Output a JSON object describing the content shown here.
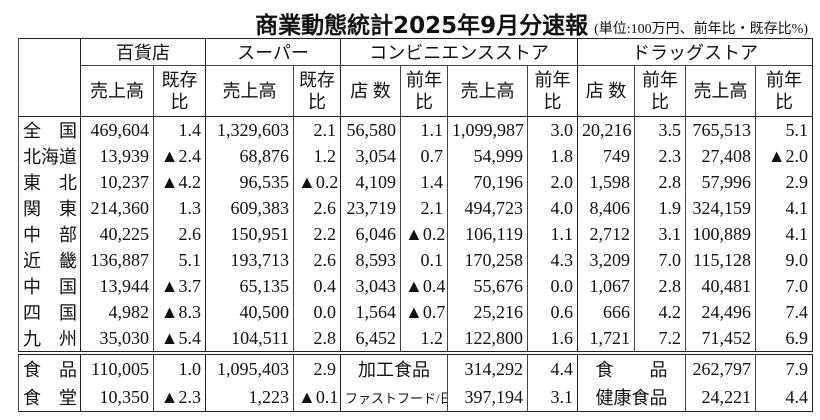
{
  "header": {
    "title": "商業動態統計2025年9月分速報",
    "unit": "(単位:100万円、前年比・既存比%)"
  },
  "table": {
    "groups": [
      "百貨店",
      "スーパー",
      "コンビニエンスストア",
      "ドラッグストア"
    ],
    "columns": [
      "売上高",
      "既存比",
      "売上高",
      "既存比",
      "店 数",
      "前年比",
      "売上高",
      "前年比",
      "店 数",
      "前年比",
      "売上高",
      "前年比"
    ],
    "rows": [
      [
        "全　国",
        "469,604",
        "1.4",
        "1,329,603",
        "2.1",
        "56,580",
        "1.1",
        "1,099,987",
        "3.0",
        "20,216",
        "3.5",
        "765,513",
        "5.1"
      ],
      [
        "北海道",
        "13,939",
        "▲2.4",
        "68,876",
        "1.2",
        "3,054",
        "0.7",
        "54,999",
        "1.8",
        "749",
        "2.3",
        "27,408",
        "▲2.0"
      ],
      [
        "東　北",
        "10,237",
        "▲4.2",
        "96,535",
        "▲0.2",
        "4,109",
        "1.4",
        "70,196",
        "2.0",
        "1,598",
        "2.8",
        "57,996",
        "2.9"
      ],
      [
        "関　東",
        "214,360",
        "1.3",
        "609,383",
        "2.6",
        "23,719",
        "2.1",
        "494,723",
        "4.0",
        "8,406",
        "1.9",
        "324,159",
        "4.1"
      ],
      [
        "中　部",
        "40,225",
        "2.6",
        "150,951",
        "2.2",
        "6,046",
        "▲0.2",
        "106,119",
        "1.1",
        "2,712",
        "3.1",
        "100,889",
        "4.1"
      ],
      [
        "近　畿",
        "136,887",
        "5.1",
        "193,713",
        "2.6",
        "8,593",
        "0.1",
        "170,258",
        "4.3",
        "3,209",
        "7.0",
        "115,128",
        "9.0"
      ],
      [
        "中　国",
        "13,944",
        "▲3.7",
        "65,135",
        "0.4",
        "3,043",
        "▲0.4",
        "55,676",
        "0.0",
        "1,067",
        "2.8",
        "40,481",
        "7.0"
      ],
      [
        "四　国",
        "4,982",
        "▲8.3",
        "40,500",
        "0.0",
        "1,564",
        "▲0.7",
        "25,216",
        "0.6",
        "666",
        "4.2",
        "24,496",
        "7.4"
      ],
      [
        "九　州",
        "35,030",
        "▲5.4",
        "104,511",
        "2.8",
        "6,452",
        "1.2",
        "122,800",
        "1.6",
        "1,721",
        "7.2",
        "71,452",
        "6.9"
      ]
    ],
    "category_rows": [
      [
        "食　品",
        "110,005",
        "1.0",
        "1,095,403",
        "2.9",
        "加工食品",
        "314,292",
        "4.4",
        "食　　品",
        "262,797",
        "7.9"
      ],
      [
        "食　堂",
        "10,350",
        "▲2.3",
        "1,223",
        "▲0.1",
        "ファストフード/日配",
        "397,194",
        "3.1",
        "健康食品",
        "24,221",
        "4.4"
      ]
    ]
  }
}
